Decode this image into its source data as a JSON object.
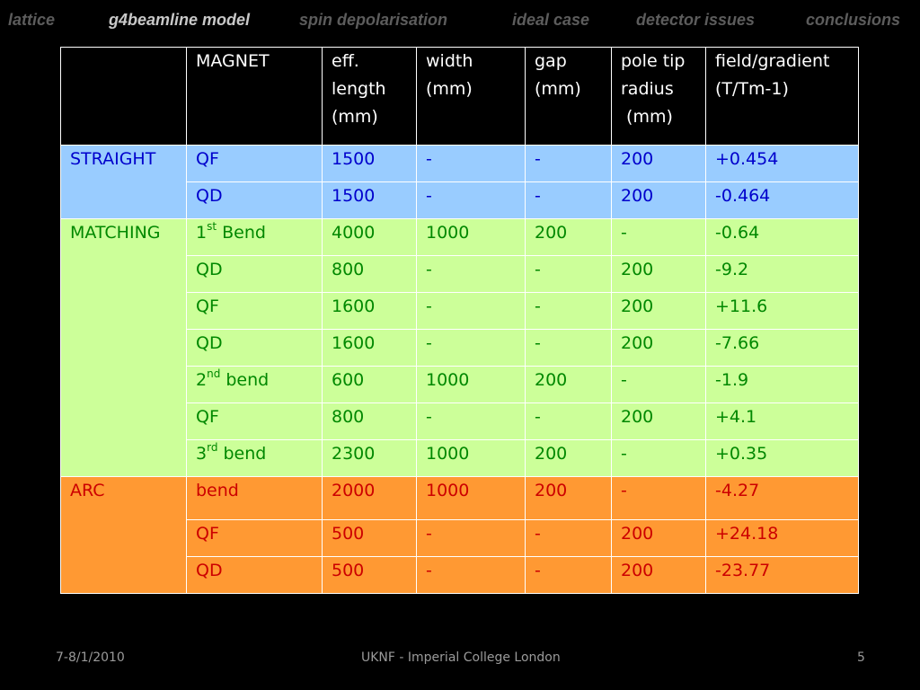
{
  "nav": [
    "lattice",
    "g4beamline model",
    "spin depolarisation",
    "ideal case",
    "detector issues",
    "conclusions"
  ],
  "active_nav_index": 1,
  "table": {
    "headers": [
      "",
      "MAGNET",
      "eff.\nlength\n(mm)",
      "width\n(mm)",
      "gap\n(mm)",
      "pole tip\nradius\n (mm)",
      "field/gradient\n(T/Tm-1)"
    ],
    "sections": [
      {
        "name": "STRAIGHT",
        "style": "straight",
        "rows": [
          {
            "magnet": "QF",
            "length": "1500",
            "width": "-",
            "gap": "-",
            "radius": "200",
            "field": "+0.454"
          },
          {
            "magnet": "QD",
            "length": "1500",
            "width": "-",
            "gap": "-",
            "radius": "200",
            "field": "-0.464"
          }
        ]
      },
      {
        "name": "MATCHING",
        "style": "matching",
        "rows": [
          {
            "magnet": "1",
            "sup": "st",
            "suffix": " Bend",
            "length": "4000",
            "width": "1000",
            "gap": "200",
            "radius": "-",
            "field": "-0.64"
          },
          {
            "magnet": "QD",
            "length": "800",
            "width": "-",
            "gap": "-",
            "radius": "200",
            "field": "-9.2"
          },
          {
            "magnet": "QF",
            "length": "1600",
            "width": "-",
            "gap": "-",
            "radius": "200",
            "field": "+11.6"
          },
          {
            "magnet": "QD",
            "length": "1600",
            "width": "-",
            "gap": "-",
            "radius": "200",
            "field": "-7.66"
          },
          {
            "magnet": "2",
            "sup": "nd",
            "suffix": " bend",
            "length": "600",
            "width": "1000",
            "gap": "200",
            "radius": "-",
            "field": "-1.9"
          },
          {
            "magnet": "QF",
            "length": "800",
            "width": "-",
            "gap": "-",
            "radius": "200",
            "field": "+4.1"
          },
          {
            "magnet": "3",
            "sup": "rd",
            "suffix": " bend",
            "length": "2300",
            "width": "1000",
            "gap": "200",
            "radius": "-",
            "field": "+0.35"
          }
        ]
      },
      {
        "name": "ARC",
        "style": "arc",
        "rows": [
          {
            "magnet": "bend",
            "length": "2000",
            "width": "1000",
            "gap": "200",
            "radius": "-",
            "field": "-4.27"
          },
          {
            "magnet": "QF",
            "length": "500",
            "width": "-",
            "gap": "-",
            "radius": "200",
            "field": "+24.18"
          },
          {
            "magnet": "QD",
            "length": "500",
            "width": "-",
            "gap": "-",
            "radius": "200",
            "field": "-23.77"
          }
        ]
      }
    ]
  },
  "footer": {
    "date": "7-8/1/2010",
    "venue": "UKNF - Imperial College London",
    "page": "5"
  },
  "colors": {
    "background": "#000000",
    "nav_inactive": "#5c5c5c",
    "nav_active": "#c8c8c8",
    "straight_fill": "#99ccff",
    "straight_text": "#0000cc",
    "matching_fill": "#ccff99",
    "matching_text": "#008800",
    "arc_fill": "#ff9933",
    "arc_text": "#cc0000"
  }
}
